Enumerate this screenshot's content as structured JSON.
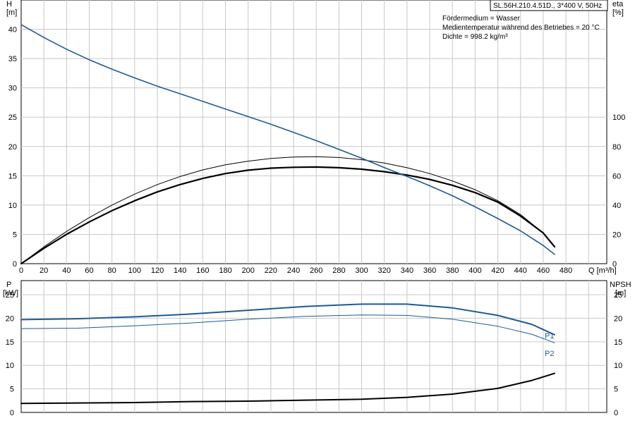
{
  "header": {
    "title": "SL.56H.210.4.51D., 3*400 V, 50Hz",
    "info": [
      "Fördermedium = Wasser",
      "Medientemperatur während des Betriebes = 20 °C",
      "Dichte = 998.2 kg/m³"
    ]
  },
  "colors": {
    "blue": "#1f5a96",
    "black": "#000000",
    "grid": "#c8c8c8"
  },
  "chart_data": [
    {
      "type": "line",
      "axes": {
        "y_left": {
          "label": "H",
          "unit": "[m]",
          "ticks": [
            0,
            5,
            10,
            15,
            20,
            25,
            30,
            35,
            40
          ],
          "range": [
            0,
            45
          ]
        },
        "y_right": {
          "label": "eta",
          "unit": "[%]",
          "ticks": [
            0,
            20,
            40,
            60,
            80,
            100
          ],
          "range": [
            0,
            180
          ]
        },
        "x": {
          "label": "Q [m³/h]",
          "ticks": [
            0,
            20,
            40,
            60,
            80,
            100,
            120,
            140,
            160,
            180,
            200,
            220,
            240,
            260,
            280,
            300,
            320,
            340,
            360,
            380,
            400,
            420,
            440,
            460,
            480
          ],
          "range": [
            0,
            516
          ]
        }
      },
      "grid": true,
      "series": [
        {
          "axis": "y_left",
          "color": "blue",
          "width": 1.6,
          "x": [
            0,
            20,
            40,
            60,
            80,
            100,
            120,
            140,
            160,
            180,
            200,
            220,
            240,
            260,
            280,
            300,
            320,
            340,
            360,
            380,
            400,
            420,
            440,
            460,
            470
          ],
          "y": [
            40.8,
            38.6,
            36.6,
            34.8,
            33.2,
            31.7,
            30.3,
            29.0,
            27.7,
            26.4,
            25.1,
            23.8,
            22.4,
            21.0,
            19.5,
            18.0,
            16.4,
            14.9,
            13.3,
            11.6,
            9.7,
            7.7,
            5.6,
            3.1,
            1.6
          ]
        },
        {
          "axis": "y_right",
          "color": "black",
          "width": 1,
          "x": [
            0,
            20,
            40,
            60,
            80,
            100,
            120,
            140,
            160,
            180,
            200,
            220,
            240,
            260,
            280,
            300,
            320,
            340,
            360,
            380,
            400,
            420,
            440,
            460,
            470
          ],
          "y": [
            0,
            11.5,
            22.0,
            31.5,
            40.0,
            47.5,
            54.0,
            59.5,
            64.0,
            67.5,
            70.0,
            71.8,
            72.8,
            73.0,
            72.5,
            71.0,
            68.7,
            65.5,
            61.5,
            56.5,
            50.5,
            43.0,
            33.5,
            21.0,
            12.0
          ]
        },
        {
          "axis": "y_right",
          "color": "black",
          "width": 2.2,
          "x": [
            0,
            20,
            40,
            60,
            80,
            100,
            120,
            140,
            160,
            180,
            200,
            220,
            240,
            260,
            280,
            300,
            320,
            340,
            360,
            380,
            400,
            420,
            440,
            460,
            470
          ],
          "y": [
            0,
            10.5,
            20.0,
            28.5,
            36.2,
            43.0,
            49.0,
            54.0,
            58.2,
            61.5,
            63.8,
            65.2,
            65.8,
            66.0,
            65.5,
            64.5,
            62.8,
            60.5,
            57.5,
            53.5,
            48.5,
            42.0,
            32.5,
            21.0,
            11.5
          ]
        }
      ]
    },
    {
      "type": "line",
      "axes": {
        "y_left": {
          "label": "P",
          "unit": "[kW]",
          "ticks": [
            0,
            5,
            10,
            15,
            20,
            25
          ],
          "range": [
            0,
            28
          ]
        },
        "y_right": {
          "label": "NPSH",
          "unit": "[m]",
          "ticks": [
            0,
            5,
            10,
            15,
            20,
            25
          ],
          "range": [
            0,
            28
          ]
        },
        "x": {
          "range": [
            0,
            516
          ]
        }
      },
      "grid": true,
      "series": [
        {
          "name": "P1",
          "axis": "y_left",
          "color": "blue",
          "width": 2,
          "x": [
            0,
            50,
            100,
            150,
            200,
            250,
            300,
            340,
            380,
            420,
            450,
            470
          ],
          "y": [
            19.7,
            19.9,
            20.3,
            20.9,
            21.7,
            22.5,
            23.0,
            23.0,
            22.2,
            20.6,
            18.7,
            16.5
          ]
        },
        {
          "name": "P2",
          "axis": "y_left",
          "color": "blue",
          "width": 1,
          "x": [
            0,
            50,
            100,
            150,
            200,
            250,
            300,
            340,
            380,
            420,
            450,
            470
          ],
          "y": [
            17.8,
            17.9,
            18.4,
            19.0,
            19.8,
            20.4,
            20.7,
            20.6,
            19.8,
            18.3,
            16.6,
            14.8
          ]
        },
        {
          "axis": "y_right",
          "color": "black",
          "width": 2,
          "x": [
            0,
            50,
            100,
            150,
            200,
            250,
            300,
            340,
            380,
            420,
            450,
            470
          ],
          "y": [
            1.9,
            2.0,
            2.1,
            2.3,
            2.4,
            2.6,
            2.8,
            3.2,
            3.9,
            5.1,
            6.8,
            8.3
          ]
        }
      ]
    }
  ]
}
